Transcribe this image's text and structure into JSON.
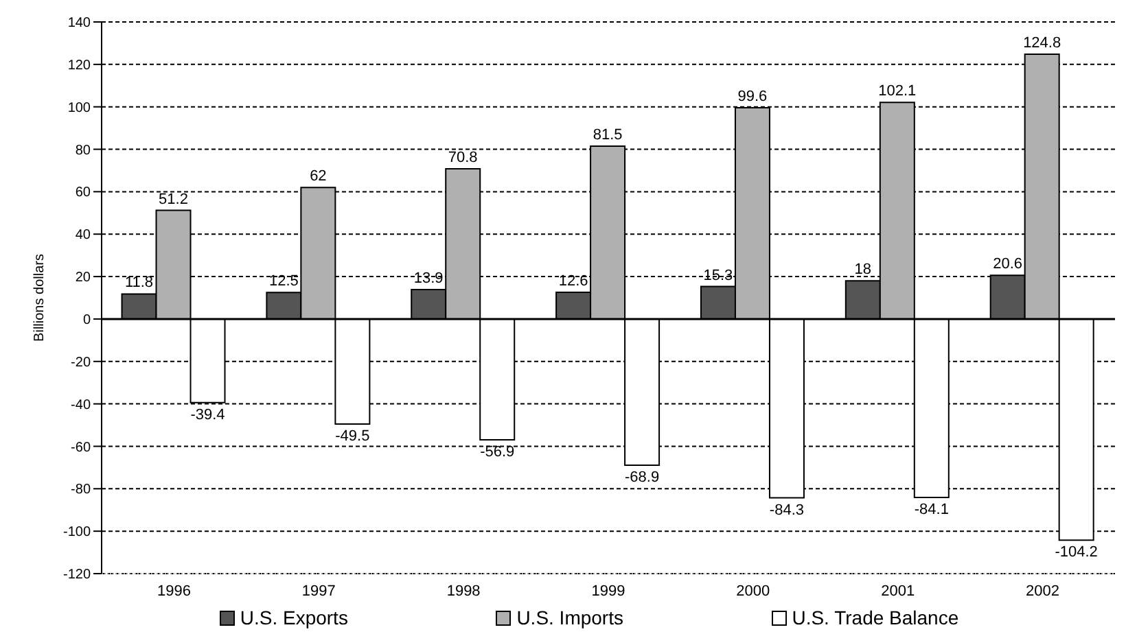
{
  "chart_data": {
    "type": "bar",
    "ylabel": "Billions dollars",
    "categories": [
      "1996",
      "1997",
      "1998",
      "1999",
      "2000",
      "2001",
      "2002"
    ],
    "series": [
      {
        "name": "U.S. Exports",
        "color": "#555555",
        "values": [
          11.8,
          12.5,
          13.9,
          12.6,
          15.3,
          18,
          20.6
        ]
      },
      {
        "name": "U.S. Imports",
        "color": "#b0b0b0",
        "values": [
          51.2,
          62,
          70.8,
          81.5,
          99.6,
          102.1,
          124.8
        ]
      },
      {
        "name": "U.S. Trade Balance",
        "color": "#ffffff",
        "values": [
          -39.4,
          -49.5,
          -56.9,
          -68.9,
          -84.3,
          -84.1,
          -104.2
        ]
      }
    ],
    "ylim": [
      -120,
      140
    ],
    "yticks": [
      -120,
      -100,
      -80,
      -60,
      -40,
      -20,
      0,
      20,
      40,
      60,
      80,
      100,
      120,
      140
    ],
    "grid": "y",
    "legend": "bottom",
    "data_labels": true
  }
}
